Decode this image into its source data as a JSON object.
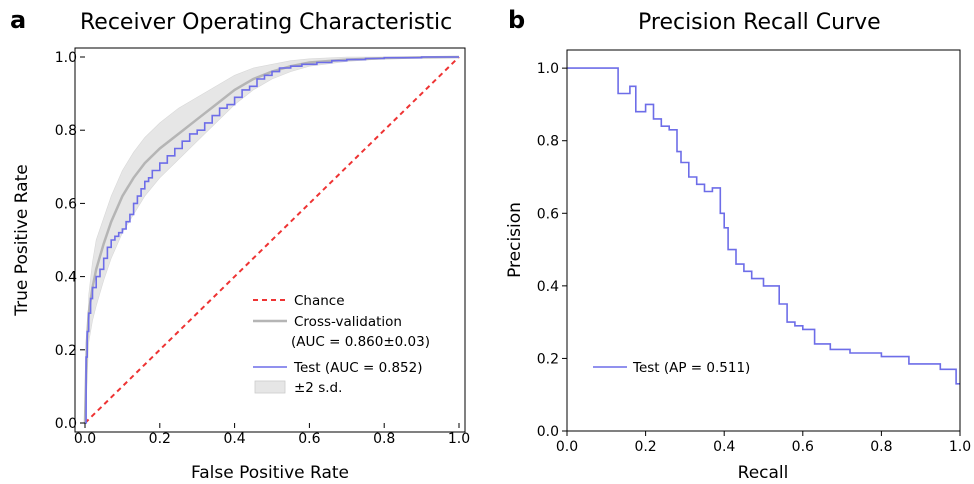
{
  "panels": {
    "a": {
      "letter": "a",
      "title": "Receiver Operating Characteristic"
    },
    "b": {
      "letter": "b",
      "title": "Precision Recall Curve"
    }
  },
  "chart_data": [
    {
      "type": "line",
      "title": "Receiver Operating Characteristic",
      "xlabel": "False Positive Rate",
      "ylabel": "True Positive Rate",
      "xlim": [
        0,
        1
      ],
      "ylim": [
        0,
        1
      ],
      "xticks": [
        "0.0",
        "0.2",
        "0.4",
        "0.6",
        "0.8",
        "1.0"
      ],
      "yticks": [
        "0.0",
        "0.2",
        "0.4",
        "0.6",
        "0.8",
        "1.0"
      ],
      "grid": false,
      "legend_position": "bottom-right",
      "legend": [
        {
          "label": "Chance"
        },
        {
          "label": "Cross-validation"
        },
        {
          "label": "(AUC = 0.860±0.03)"
        },
        {
          "label": "Test (AUC = 0.852)"
        },
        {
          "label": "±2 s.d."
        }
      ],
      "series": [
        {
          "name": "Chance",
          "color": "#ee3333",
          "style": "dashed",
          "x": [
            0,
            1
          ],
          "y": [
            0,
            1
          ]
        },
        {
          "name": "Cross-validation",
          "color": "#b5b5b5",
          "style": "solid",
          "x": [
            0,
            0.005,
            0.01,
            0.02,
            0.03,
            0.05,
            0.07,
            0.1,
            0.13,
            0.16,
            0.2,
            0.25,
            0.3,
            0.35,
            0.4,
            0.45,
            0.5,
            0.55,
            0.6,
            0.7,
            0.8,
            0.9,
            1.0
          ],
          "y": [
            0,
            0.22,
            0.3,
            0.37,
            0.42,
            0.49,
            0.55,
            0.62,
            0.67,
            0.71,
            0.75,
            0.79,
            0.83,
            0.87,
            0.91,
            0.94,
            0.96,
            0.975,
            0.985,
            0.993,
            0.997,
            0.999,
            1.0
          ]
        },
        {
          "name": "±2 s.d.",
          "color": "#e6e6e6",
          "style": "band",
          "x": [
            0,
            0.01,
            0.02,
            0.03,
            0.05,
            0.07,
            0.1,
            0.13,
            0.16,
            0.2,
            0.25,
            0.3,
            0.35,
            0.4,
            0.45,
            0.5,
            0.55,
            0.6,
            0.7,
            0.8,
            0.9,
            1.0
          ],
          "upper": [
            0.02,
            0.35,
            0.44,
            0.5,
            0.56,
            0.62,
            0.69,
            0.74,
            0.78,
            0.82,
            0.86,
            0.89,
            0.92,
            0.95,
            0.97,
            0.98,
            0.99,
            0.995,
            1.0,
            1.0,
            1.0,
            1.0
          ],
          "lower": [
            0,
            0.22,
            0.28,
            0.32,
            0.39,
            0.45,
            0.52,
            0.57,
            0.62,
            0.67,
            0.72,
            0.77,
            0.82,
            0.87,
            0.91,
            0.94,
            0.96,
            0.975,
            0.988,
            0.995,
            0.998,
            1.0
          ]
        },
        {
          "name": "Test (AUC = 0.852)",
          "color": "#6d6de8",
          "style": "step",
          "x": [
            0,
            0.003,
            0.003,
            0.006,
            0.006,
            0.01,
            0.01,
            0.015,
            0.015,
            0.02,
            0.02,
            0.03,
            0.03,
            0.04,
            0.04,
            0.05,
            0.05,
            0.06,
            0.06,
            0.07,
            0.07,
            0.08,
            0.08,
            0.09,
            0.09,
            0.1,
            0.1,
            0.11,
            0.11,
            0.12,
            0.12,
            0.13,
            0.13,
            0.14,
            0.14,
            0.15,
            0.15,
            0.16,
            0.16,
            0.17,
            0.17,
            0.18,
            0.18,
            0.2,
            0.2,
            0.22,
            0.22,
            0.24,
            0.24,
            0.26,
            0.26,
            0.28,
            0.28,
            0.3,
            0.3,
            0.32,
            0.32,
            0.34,
            0.34,
            0.36,
            0.36,
            0.38,
            0.38,
            0.4,
            0.4,
            0.42,
            0.42,
            0.44,
            0.44,
            0.46,
            0.46,
            0.48,
            0.48,
            0.5,
            0.5,
            0.52,
            0.52,
            0.55,
            0.55,
            0.58,
            0.58,
            0.62,
            0.62,
            0.66,
            0.66,
            0.7,
            0.7,
            0.75,
            0.75,
            0.8,
            0.8,
            0.9,
            0.9,
            1.0
          ],
          "y": [
            0,
            0,
            0.18,
            0.18,
            0.25,
            0.25,
            0.3,
            0.3,
            0.34,
            0.34,
            0.37,
            0.37,
            0.4,
            0.4,
            0.42,
            0.42,
            0.45,
            0.45,
            0.48,
            0.48,
            0.5,
            0.5,
            0.51,
            0.51,
            0.52,
            0.52,
            0.53,
            0.53,
            0.55,
            0.55,
            0.57,
            0.57,
            0.6,
            0.6,
            0.62,
            0.62,
            0.64,
            0.64,
            0.66,
            0.66,
            0.67,
            0.67,
            0.69,
            0.69,
            0.71,
            0.71,
            0.73,
            0.73,
            0.75,
            0.75,
            0.77,
            0.77,
            0.79,
            0.79,
            0.8,
            0.8,
            0.82,
            0.82,
            0.84,
            0.84,
            0.86,
            0.86,
            0.87,
            0.87,
            0.89,
            0.89,
            0.91,
            0.91,
            0.92,
            0.92,
            0.94,
            0.94,
            0.95,
            0.95,
            0.96,
            0.96,
            0.97,
            0.97,
            0.975,
            0.975,
            0.98,
            0.98,
            0.985,
            0.985,
            0.99,
            0.99,
            0.993,
            0.993,
            0.996,
            0.996,
            0.998,
            0.998,
            1.0,
            1.0
          ]
        }
      ]
    },
    {
      "type": "line",
      "title": "Precision Recall Curve",
      "xlabel": "Recall",
      "ylabel": "Precision",
      "xlim": [
        0,
        1
      ],
      "ylim": [
        0,
        1.05
      ],
      "xticks": [
        "0.0",
        "0.2",
        "0.4",
        "0.6",
        "0.8",
        "1.0"
      ],
      "yticks": [
        "0.0",
        "0.2",
        "0.4",
        "0.6",
        "0.8",
        "1.0"
      ],
      "grid": false,
      "legend_position": "bottom-left",
      "legend": [
        {
          "label": "Test (AP = 0.511)"
        }
      ],
      "series": [
        {
          "name": "Test (AP = 0.511)",
          "color": "#6d6de8",
          "style": "step",
          "x": [
            0,
            0.13,
            0.13,
            0.16,
            0.16,
            0.175,
            0.175,
            0.2,
            0.2,
            0.22,
            0.22,
            0.24,
            0.24,
            0.26,
            0.26,
            0.28,
            0.28,
            0.29,
            0.29,
            0.31,
            0.31,
            0.33,
            0.33,
            0.35,
            0.35,
            0.37,
            0.37,
            0.39,
            0.39,
            0.4,
            0.4,
            0.41,
            0.41,
            0.43,
            0.43,
            0.45,
            0.45,
            0.47,
            0.47,
            0.5,
            0.5,
            0.54,
            0.54,
            0.56,
            0.56,
            0.58,
            0.58,
            0.6,
            0.6,
            0.63,
            0.63,
            0.67,
            0.67,
            0.72,
            0.72,
            0.8,
            0.8,
            0.87,
            0.87,
            0.95,
            0.95,
            0.99,
            0.99,
            1.0
          ],
          "y": [
            1.0,
            1.0,
            0.93,
            0.93,
            0.95,
            0.95,
            0.88,
            0.88,
            0.9,
            0.9,
            0.86,
            0.86,
            0.84,
            0.84,
            0.83,
            0.83,
            0.77,
            0.77,
            0.74,
            0.74,
            0.7,
            0.7,
            0.68,
            0.68,
            0.66,
            0.66,
            0.67,
            0.67,
            0.6,
            0.6,
            0.56,
            0.56,
            0.5,
            0.5,
            0.46,
            0.46,
            0.44,
            0.44,
            0.42,
            0.42,
            0.4,
            0.4,
            0.35,
            0.35,
            0.3,
            0.3,
            0.29,
            0.29,
            0.28,
            0.28,
            0.24,
            0.24,
            0.225,
            0.225,
            0.215,
            0.215,
            0.205,
            0.205,
            0.185,
            0.185,
            0.17,
            0.17,
            0.13,
            0.13
          ]
        }
      ]
    }
  ]
}
